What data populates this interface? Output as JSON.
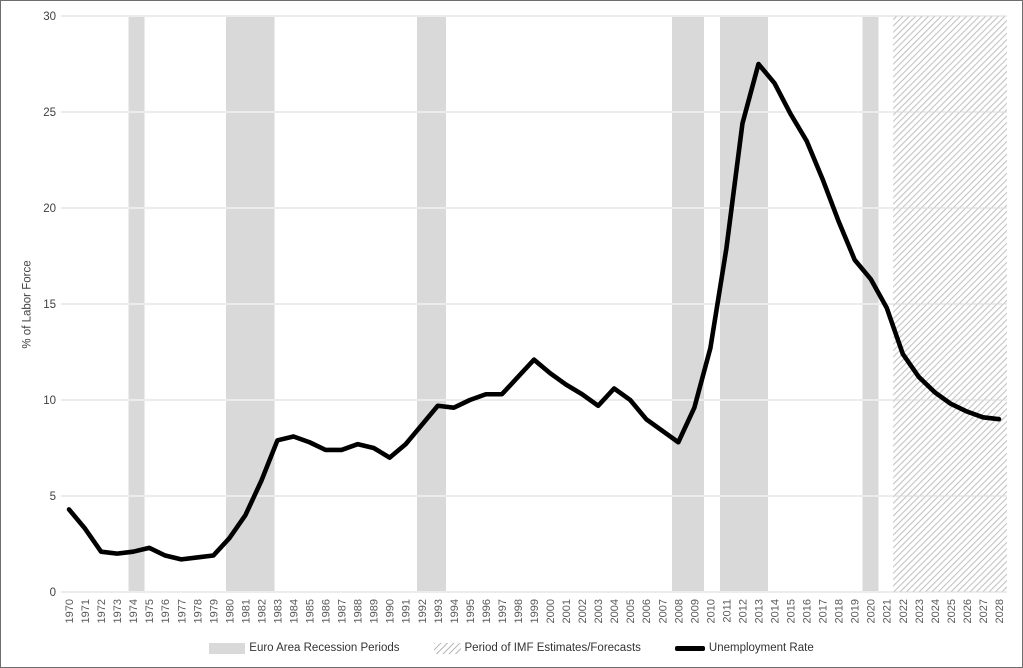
{
  "chart_data": {
    "type": "line",
    "title": "",
    "ylabel": "% of Labor Force",
    "xlabel": "",
    "ylim": [
      0,
      30
    ],
    "yticks": [
      0,
      5,
      10,
      15,
      20,
      25,
      30
    ],
    "grid": true,
    "legend_position": "bottom",
    "x": [
      1970,
      1971,
      1972,
      1973,
      1974,
      1975,
      1976,
      1977,
      1978,
      1979,
      1980,
      1981,
      1982,
      1983,
      1984,
      1985,
      1986,
      1987,
      1988,
      1989,
      1990,
      1991,
      1992,
      1993,
      1994,
      1995,
      1996,
      1997,
      1998,
      1999,
      2000,
      2001,
      2002,
      2003,
      2004,
      2005,
      2006,
      2007,
      2008,
      2009,
      2010,
      2011,
      2012,
      2013,
      2014,
      2015,
      2016,
      2017,
      2018,
      2019,
      2020,
      2021,
      2022,
      2023,
      2024,
      2025,
      2026,
      2027,
      2028
    ],
    "series": [
      {
        "name": "Unemployment Rate",
        "values": [
          4.3,
          3.3,
          2.1,
          2.0,
          2.1,
          2.3,
          1.9,
          1.7,
          1.8,
          1.9,
          2.8,
          4.0,
          5.8,
          7.9,
          8.1,
          7.8,
          7.4,
          7.4,
          7.7,
          7.5,
          7.0,
          7.7,
          8.7,
          9.7,
          9.6,
          10.0,
          10.3,
          10.3,
          11.2,
          12.1,
          11.4,
          10.8,
          10.3,
          9.7,
          10.6,
          10.0,
          9.0,
          8.4,
          7.8,
          9.6,
          12.7,
          17.9,
          24.4,
          27.5,
          26.5,
          24.9,
          23.5,
          21.5,
          19.3,
          17.3,
          16.3,
          14.8,
          12.4,
          11.2,
          10.4,
          9.8,
          9.4,
          9.1,
          9.0
        ]
      }
    ],
    "recession_bands": [
      [
        1973.7,
        1974.7
      ],
      [
        1979.8,
        1982.8
      ],
      [
        1991.7,
        1993.5
      ],
      [
        2007.6,
        2009.6
      ],
      [
        2010.6,
        2013.6
      ],
      [
        2019.5,
        2020.5
      ]
    ],
    "forecast_band": {
      "start": 2021.4,
      "end": 2028.6
    },
    "legend": [
      {
        "label": "Euro Area Recession Periods",
        "swatch": "recession-band"
      },
      {
        "label": "Period of IMF Estimates/Forecasts",
        "swatch": "hatch"
      },
      {
        "label": "Unemployment Rate",
        "swatch": "line"
      }
    ],
    "colors": {
      "line": "#000000",
      "recession_band": "#d9d9d9",
      "gridline": "#d9d9d9",
      "gridline_on_band": "#ffffff",
      "hatch_line": "#c3c3c3",
      "x_tick_text": "#595959",
      "y_tick_text": "#404040"
    }
  }
}
